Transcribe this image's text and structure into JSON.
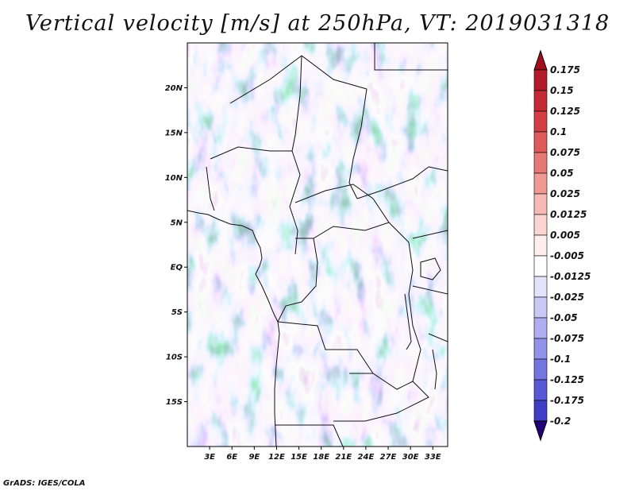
{
  "title": "Vertical velocity [m/s] at 250hPa, VT: 2019031318",
  "credit": "GrADS: IGES/COLA",
  "map": {
    "lon_range": [
      0,
      35
    ],
    "lat_range": [
      -20,
      25
    ],
    "lat_ticks": [
      {
        "value": 20,
        "label": "20N"
      },
      {
        "value": 15,
        "label": "15N"
      },
      {
        "value": 10,
        "label": "10N"
      },
      {
        "value": 5,
        "label": "5N"
      },
      {
        "value": 0,
        "label": "EQ"
      },
      {
        "value": -5,
        "label": "5S"
      },
      {
        "value": -10,
        "label": "10S"
      },
      {
        "value": -15,
        "label": "15S"
      }
    ],
    "lon_ticks": [
      {
        "value": 3,
        "label": "3E"
      },
      {
        "value": 6,
        "label": "6E"
      },
      {
        "value": 9,
        "label": "9E"
      },
      {
        "value": 12,
        "label": "12E"
      },
      {
        "value": 15,
        "label": "15E"
      },
      {
        "value": 18,
        "label": "18E"
      },
      {
        "value": 21,
        "label": "21E"
      },
      {
        "value": 24,
        "label": "24E"
      },
      {
        "value": 27,
        "label": "27E"
      },
      {
        "value": 30,
        "label": "30E"
      },
      {
        "value": 33,
        "label": "33E"
      }
    ]
  },
  "colorbar": {
    "top_color": "#a10d1d",
    "bottom_color": "#22007a",
    "levels": [
      {
        "label": "0.175",
        "color": "#b21a2a"
      },
      {
        "label": "0.15",
        "color": "#c42a36"
      },
      {
        "label": "0.125",
        "color": "#d33d44"
      },
      {
        "label": "0.1",
        "color": "#de5a5b"
      },
      {
        "label": "0.075",
        "color": "#e67876"
      },
      {
        "label": "0.05",
        "color": "#ef9894"
      },
      {
        "label": "0.025",
        "color": "#f6b9b4"
      },
      {
        "label": "0.0125",
        "color": "#fad5d1"
      },
      {
        "label": "0.005",
        "color": "#fdeeec"
      },
      {
        "label": "-0.005",
        "color": "#ffffff"
      },
      {
        "label": "-0.0125",
        "color": "#e3e3fb"
      },
      {
        "label": "-0.025",
        "color": "#c9c9f5"
      },
      {
        "label": "-0.05",
        "color": "#aeaef0"
      },
      {
        "label": "-0.075",
        "color": "#9292ea"
      },
      {
        "label": "-0.1",
        "color": "#7575e2"
      },
      {
        "label": "-0.125",
        "color": "#5858d6"
      },
      {
        "label": "-0.175",
        "color": "#3d3dc6"
      },
      {
        "label": "-0.2",
        "color": "#2a2ab0"
      }
    ]
  }
}
